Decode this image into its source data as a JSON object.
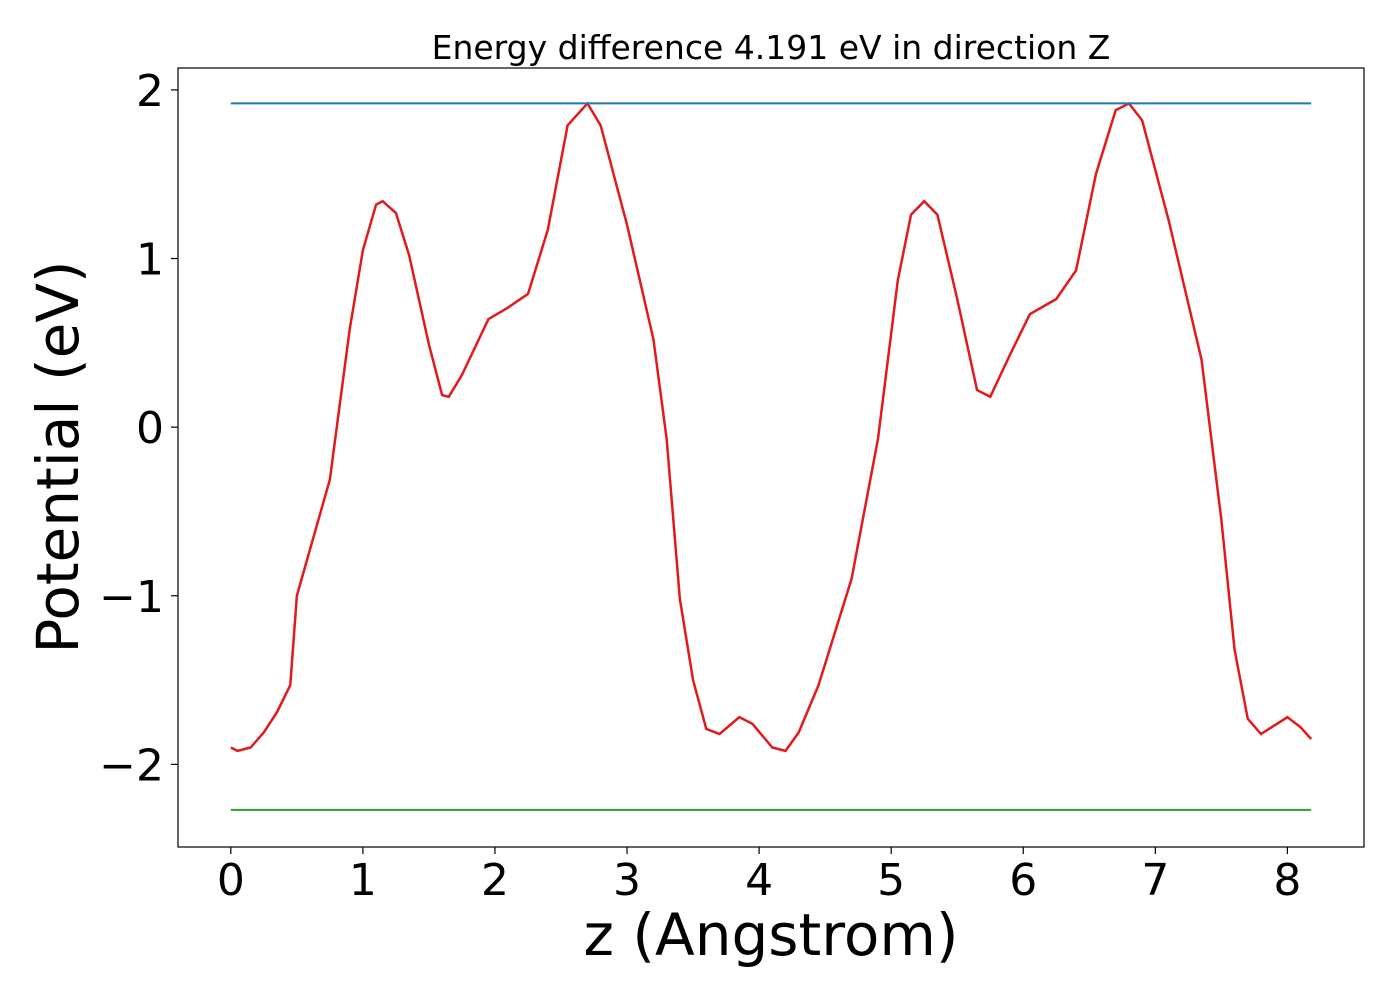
{
  "chart_data": {
    "type": "line",
    "title": "Energy difference 4.191 eV in direction Z",
    "xlabel": "z (Angstrom)",
    "ylabel": "Potential (eV)",
    "xlim": [
      -0.4,
      8.58
    ],
    "ylim": [
      -2.49,
      2.13
    ],
    "xticks": [
      0,
      1,
      2,
      3,
      4,
      5,
      6,
      7,
      8
    ],
    "yticks": [
      {
        "value": -2,
        "label": "−2"
      },
      {
        "value": -1,
        "label": "−1"
      },
      0,
      1,
      2
    ],
    "series": [
      {
        "color": "#e31a1c",
        "x": [
          0,
          0.05,
          0.15,
          0.25,
          0.35,
          0.45,
          0.5,
          0.75,
          0.9,
          1.0,
          1.1,
          1.15,
          1.25,
          1.35,
          1.5,
          1.6,
          1.65,
          1.75,
          1.95,
          2.1,
          2.25,
          2.4,
          2.55,
          2.7,
          2.8,
          3.0,
          3.2,
          3.3,
          3.4,
          3.5,
          3.6,
          3.7,
          3.85,
          3.95,
          4.1,
          4.2,
          4.3,
          4.45,
          4.7,
          4.9,
          5.05,
          5.15,
          5.25,
          5.35,
          5.5,
          5.65,
          5.75,
          5.9,
          6.05,
          6.25,
          6.4,
          6.55,
          6.7,
          6.8,
          6.9,
          7.1,
          7.35,
          7.5,
          7.6,
          7.7,
          7.8,
          7.9,
          8.0,
          8.1,
          8.18
        ],
        "values": [
          -1.9,
          -1.92,
          -1.9,
          -1.81,
          -1.69,
          -1.53,
          -1.0,
          -0.31,
          0.58,
          1.05,
          1.32,
          1.34,
          1.27,
          1.02,
          0.49,
          0.19,
          0.18,
          0.31,
          0.64,
          0.71,
          0.79,
          1.17,
          1.79,
          1.92,
          1.79,
          1.2,
          0.52,
          -0.07,
          -1.02,
          -1.5,
          -1.79,
          -1.82,
          -1.72,
          -1.76,
          -1.9,
          -1.92,
          -1.81,
          -1.53,
          -0.9,
          -0.07,
          0.87,
          1.26,
          1.34,
          1.26,
          0.76,
          0.22,
          0.18,
          0.43,
          0.67,
          0.76,
          0.93,
          1.5,
          1.88,
          1.92,
          1.82,
          1.23,
          0.4,
          -0.55,
          -1.32,
          -1.73,
          -1.82,
          -1.77,
          -1.72,
          -1.78,
          -1.85
        ]
      },
      {
        "color": "#1f77b4",
        "x": [
          0,
          8.18
        ],
        "values": [
          1.92,
          1.92
        ]
      },
      {
        "color": "#2ca02c",
        "x": [
          0,
          8.18
        ],
        "values": [
          -2.27,
          -2.27
        ]
      }
    ]
  }
}
